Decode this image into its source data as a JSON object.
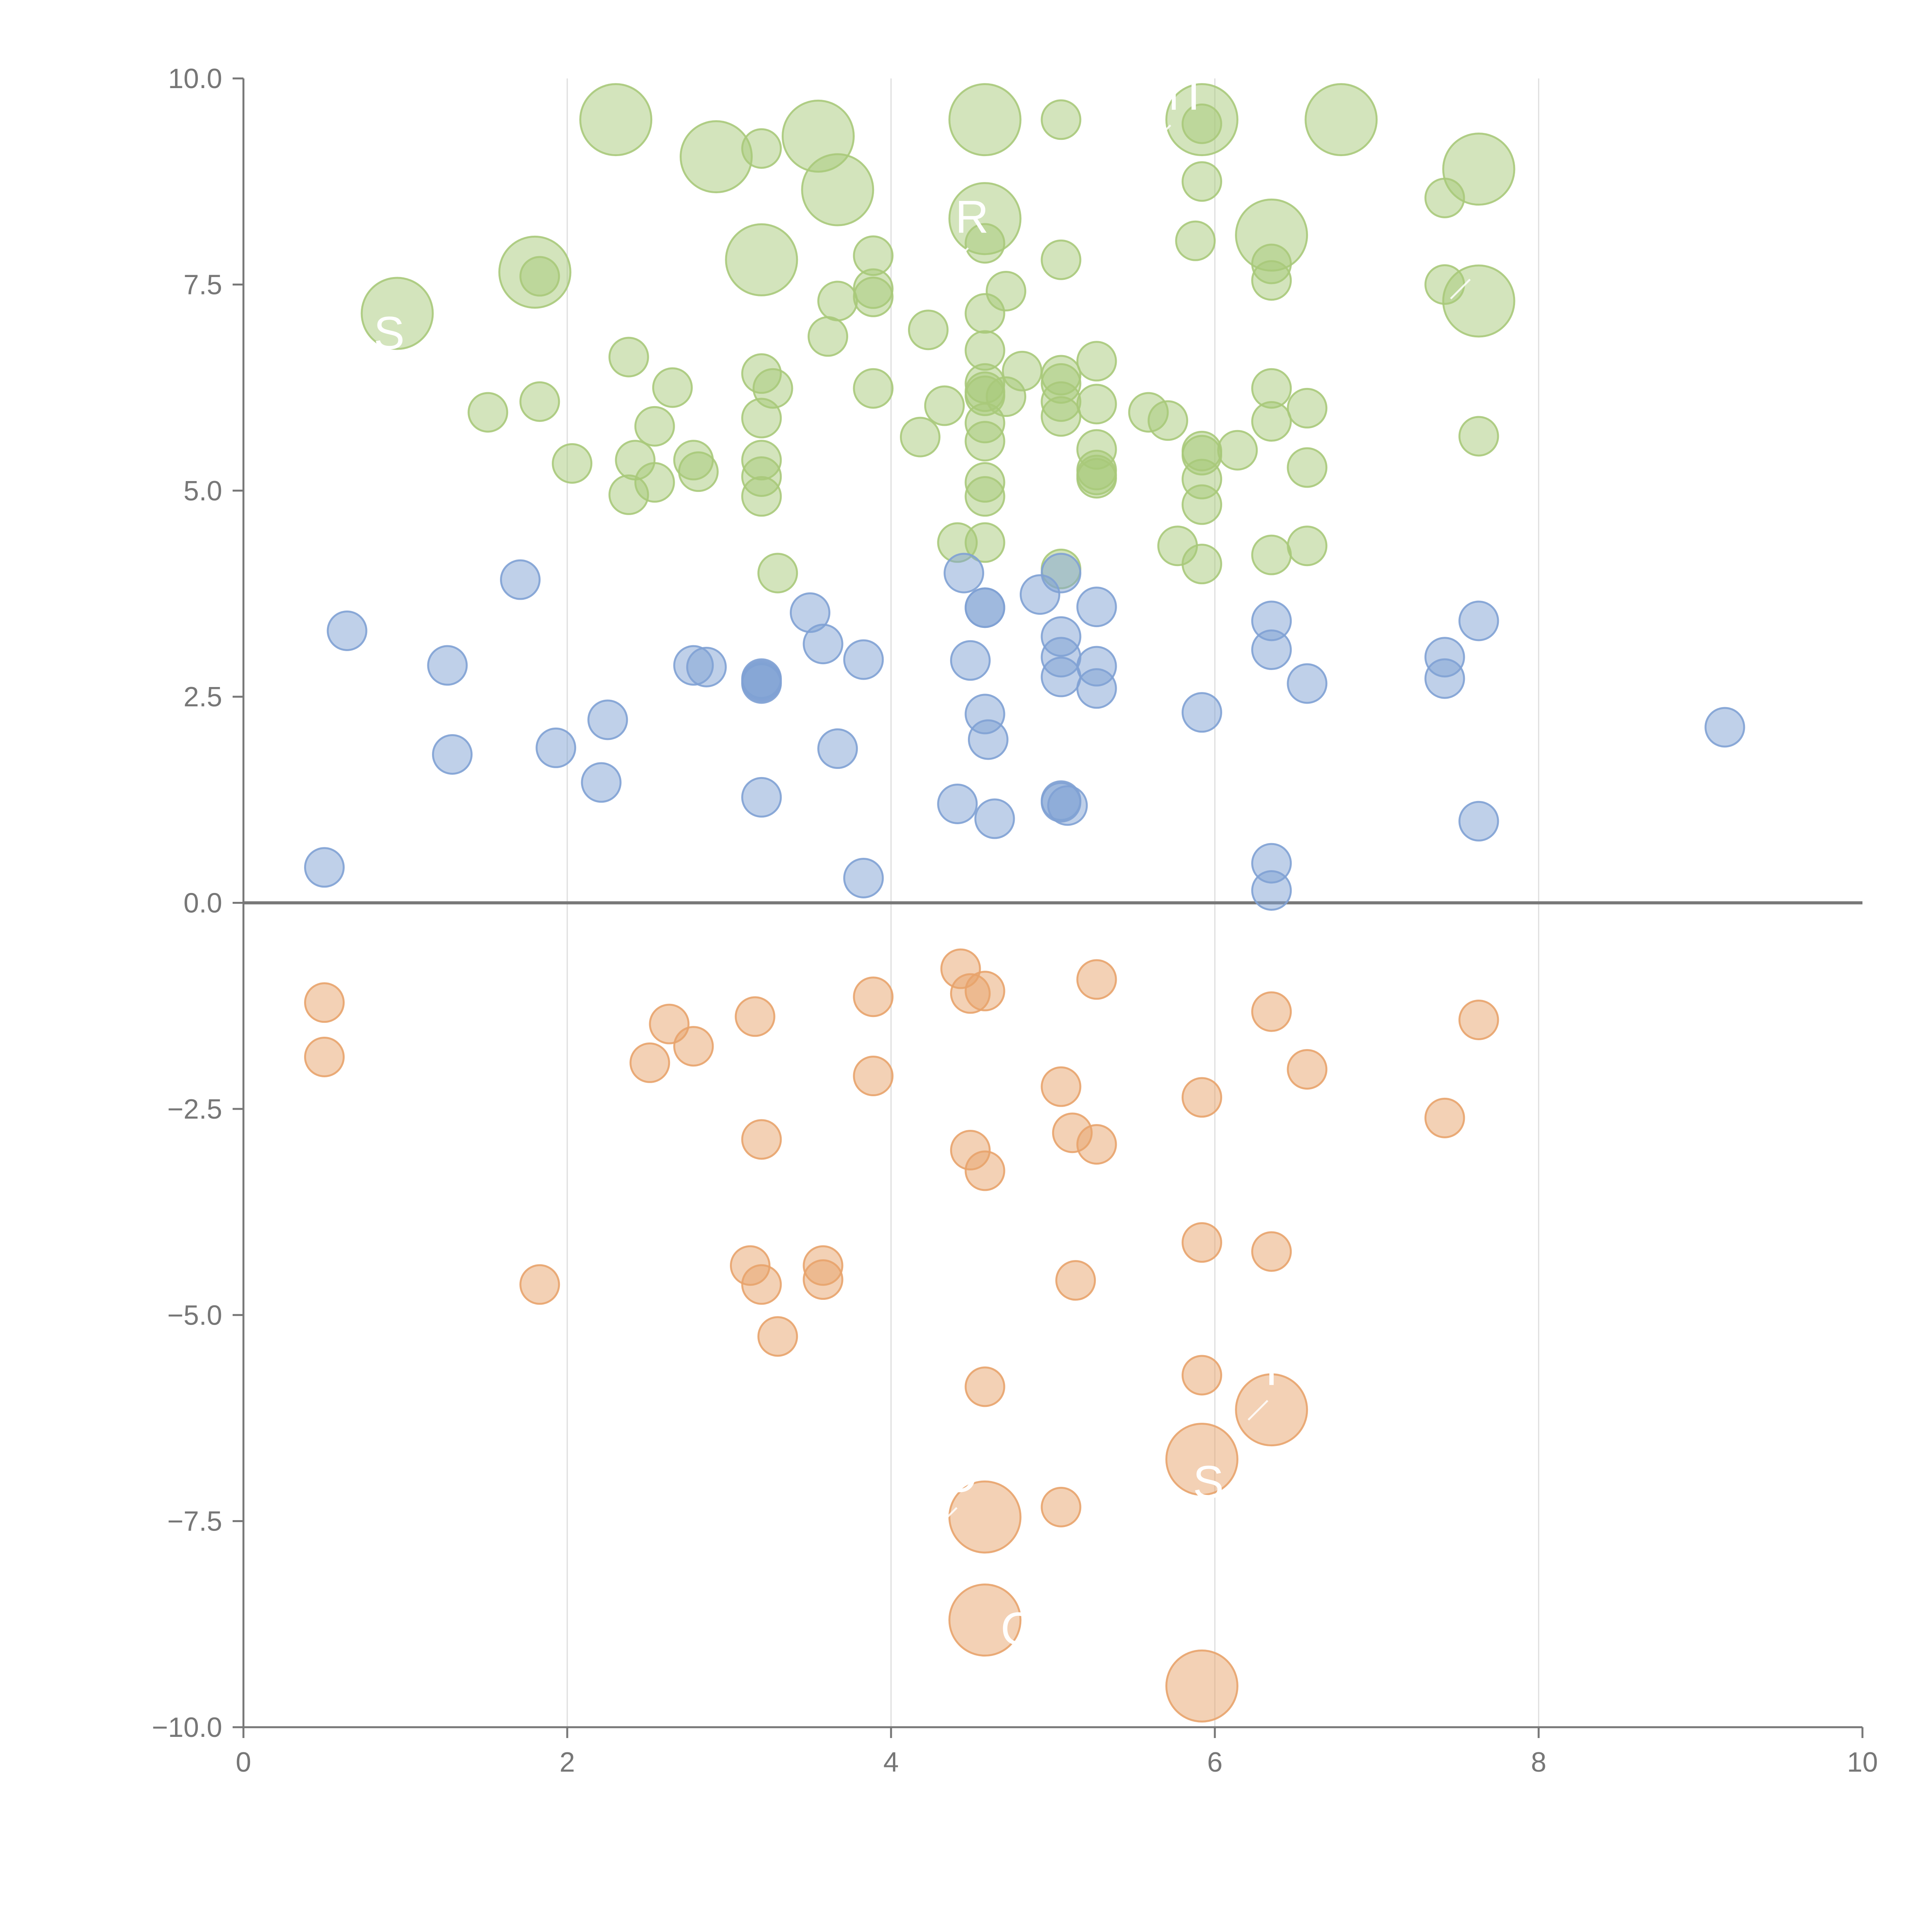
{
  "chart_data": {
    "type": "scatter",
    "title": "",
    "xlabel": "",
    "ylabel": "",
    "xlim": [
      0,
      10
    ],
    "ylim": [
      -10,
      10
    ],
    "x_ticks": [
      0,
      2,
      4,
      6,
      8,
      10
    ],
    "x_tick_labels": [
      "0",
      "2",
      "4",
      "6",
      "8",
      "10"
    ],
    "y_ticks": [
      10,
      7.5,
      5,
      2.5,
      0,
      -2.5,
      -5,
      -7.5,
      -10
    ],
    "y_tick_labels": [
      "10.0",
      "7.5",
      "5.0",
      "2.5",
      "0.0",
      "−2.5",
      "−5.0",
      "−7.5",
      "−10.0"
    ],
    "grid": {
      "x": true,
      "y": false
    },
    "zero_line": true,
    "colors": {
      "green": "#a8c97a",
      "blue": "#7fa1d4",
      "orange": "#e8a36c",
      "axis": "#777777",
      "grid": "#dddddd"
    },
    "series": [
      {
        "name": "green",
        "color": "#a8c97a",
        "x": [
          2.3,
          3.55,
          4.58,
          5.05,
          5.92,
          6.78,
          5.92,
          2.92,
          3.2,
          3.67,
          7.63,
          4.58,
          4.58,
          6.35,
          5.92,
          7.42,
          5.88,
          1.8,
          1.83,
          3.2,
          3.89,
          3.89,
          4.58,
          5.05,
          6.35,
          6.35,
          7.42,
          7.63,
          0.95,
          3.67,
          3.89,
          4.71,
          4.58,
          4.23,
          3.61,
          5.92,
          5.92,
          4.58,
          4.58,
          5.27,
          2.38,
          3.2,
          3.27,
          3.89,
          4.58,
          4.58,
          4.71,
          4.81,
          5.05,
          5.05,
          5.05,
          5.05,
          5.27,
          5.59,
          5.71,
          6.35,
          6.57,
          3.2,
          2.54,
          4.58,
          4.58,
          4.33,
          4.18,
          1.51,
          1.83,
          2.65,
          3.2,
          3.2,
          2.03,
          2.42,
          2.81,
          3.2,
          4.58,
          5.27,
          5.27,
          5.27,
          5.92,
          5.92,
          6.14,
          6.35,
          6.57,
          7.63,
          2.54,
          2.38,
          2.78,
          5.27,
          4.58,
          3.3,
          4.41,
          5.05,
          5.77,
          6.35,
          6.57,
          5.92
        ],
        "y": [
          9.5,
          9.3,
          9.5,
          9.5,
          9.5,
          9.5,
          9.45,
          9.05,
          9.15,
          8.65,
          8.9,
          8.3,
          8.0,
          8.1,
          8.75,
          8.55,
          8.03,
          7.65,
          7.6,
          7.8,
          7.85,
          7.45,
          7.15,
          7.8,
          7.75,
          7.55,
          7.5,
          7.3,
          7.15,
          7.3,
          7.35,
          7.42,
          6.7,
          6.95,
          6.87,
          5.43,
          5.14,
          6.3,
          6.2,
          6.57,
          6.62,
          6.42,
          6.24,
          6.24,
          6.15,
          5.82,
          6.14,
          6.45,
          6.4,
          6.3,
          6.08,
          5.9,
          6.05,
          5.95,
          5.85,
          6.24,
          6.0,
          5.88,
          5.78,
          5.6,
          5.1,
          6.03,
          5.65,
          5.95,
          6.08,
          6.25,
          5.37,
          5.17,
          5.33,
          5.37,
          5.23,
          4.93,
          4.93,
          5.5,
          5.25,
          5.19,
          4.83,
          5.48,
          5.49,
          5.84,
          5.28,
          5.66,
          5.1,
          4.95,
          5.37,
          5.15,
          4.37,
          4.0,
          4.37,
          4.05,
          4.33,
          4.22,
          4.33,
          4.11
        ],
        "sizes": [
          3,
          3,
          3,
          1,
          3,
          3,
          1,
          3,
          1,
          3,
          3,
          3,
          1,
          3,
          1,
          1,
          1,
          3,
          1,
          3,
          1,
          1,
          1,
          1,
          1,
          1,
          1,
          3,
          3,
          1,
          1,
          1,
          1,
          1,
          1,
          1,
          1,
          1,
          1,
          1,
          1,
          1,
          1,
          1,
          1,
          1,
          1,
          1,
          1,
          1,
          1,
          1,
          1,
          1,
          1,
          1,
          1,
          1,
          1,
          1,
          1,
          1,
          1,
          1,
          1,
          1,
          1,
          1,
          1,
          1,
          1,
          1,
          1,
          1,
          1,
          1,
          1,
          1,
          1,
          1,
          1,
          1,
          1,
          1,
          1,
          1,
          1,
          1,
          1,
          1,
          1,
          1,
          1,
          1
        ]
      },
      {
        "name": "blue",
        "color": "#7fa1d4",
        "x": [
          0.64,
          1.26,
          1.71,
          1.93,
          2.25,
          2.21,
          1.29,
          0.5,
          2.78,
          2.86,
          3.2,
          3.2,
          3.2,
          3.2,
          3.5,
          3.58,
          3.83,
          3.67,
          3.2,
          3.83,
          4.45,
          4.49,
          4.58,
          4.58,
          4.58,
          4.6,
          4.64,
          4.41,
          4.92,
          5.05,
          5.05,
          5.05,
          5.05,
          5.05,
          5.05,
          5.09,
          5.27,
          5.27,
          5.27,
          5.92,
          6.35,
          6.35,
          6.57,
          6.35,
          6.35,
          7.42,
          7.42,
          7.63,
          7.63,
          9.15
        ],
        "y": [
          3.3,
          2.88,
          3.92,
          1.88,
          2.22,
          1.46,
          1.8,
          0.43,
          2.88,
          2.86,
          2.72,
          2.68,
          2.66,
          1.28,
          3.52,
          3.14,
          2.95,
          1.87,
          2.7,
          0.3,
          4.0,
          2.94,
          3.58,
          3.58,
          2.29,
          1.98,
          1.02,
          1.2,
          3.74,
          4.0,
          3.23,
          2.98,
          2.74,
          1.24,
          1.22,
          1.18,
          3.59,
          2.87,
          2.6,
          2.31,
          3.42,
          3.07,
          2.66,
          0.48,
          0.15,
          2.98,
          2.72,
          3.42,
          0.99,
          2.13
        ]
      },
      {
        "name": "orange",
        "color": "#e8a36c",
        "x": [
          0.5,
          0.5,
          1.83,
          2.51,
          2.63,
          2.78,
          3.16,
          3.2,
          3.13,
          3.2,
          3.3,
          3.58,
          3.58,
          3.89,
          3.89,
          4.43,
          4.49,
          4.58,
          4.49,
          4.58,
          4.58,
          5.05,
          5.12,
          5.14,
          5.27,
          5.27,
          5.05,
          5.92,
          5.92,
          5.92,
          6.35,
          6.35,
          6.57,
          7.42,
          7.63,
          4.58,
          4.58,
          5.92,
          5.92,
          6.35
        ],
        "y": [
          -1.21,
          -1.87,
          -4.63,
          -1.94,
          -1.47,
          -1.74,
          -1.38,
          -2.87,
          -4.4,
          -4.63,
          -5.26,
          -4.4,
          -4.57,
          -1.14,
          -2.1,
          -0.8,
          -1.1,
          -1.07,
          -3.0,
          -3.25,
          -5.87,
          -2.23,
          -2.79,
          -4.58,
          -0.93,
          -2.93,
          -7.33,
          -2.36,
          -4.12,
          -5.73,
          -1.32,
          -4.23,
          -2.02,
          -2.61,
          -1.42,
          -7.45,
          -8.7,
          -6.75,
          -9.5,
          -6.15
        ],
        "sizes": [
          1,
          1,
          1,
          1,
          1,
          1,
          1,
          1,
          1,
          1,
          1,
          1,
          1,
          1,
          1,
          1,
          1,
          1,
          1,
          1,
          1,
          1,
          1,
          1,
          1,
          1,
          1,
          1,
          1,
          1,
          1,
          1,
          1,
          1,
          1,
          3,
          3,
          3,
          3,
          3
        ]
      }
    ],
    "annotations": [
      {
        "text": "MT",
        "x": 5.75,
        "y": 9.62
      },
      {
        "text": "R",
        "x": 4.5,
        "y": 8.13
      },
      {
        "text": "SO",
        "x": 7.6,
        "y": 7.75
      },
      {
        "text": "S",
        "x": 0.9,
        "y": 6.72
      },
      {
        "text": "D",
        "x": 4.43,
        "y": -7.15
      },
      {
        "text": "S",
        "x": 5.96,
        "y": -7.22
      },
      {
        "text": "C",
        "x": 4.78,
        "y": -9.0
      },
      {
        "text": "T",
        "x": 6.35,
        "y": -5.85
      }
    ]
  }
}
